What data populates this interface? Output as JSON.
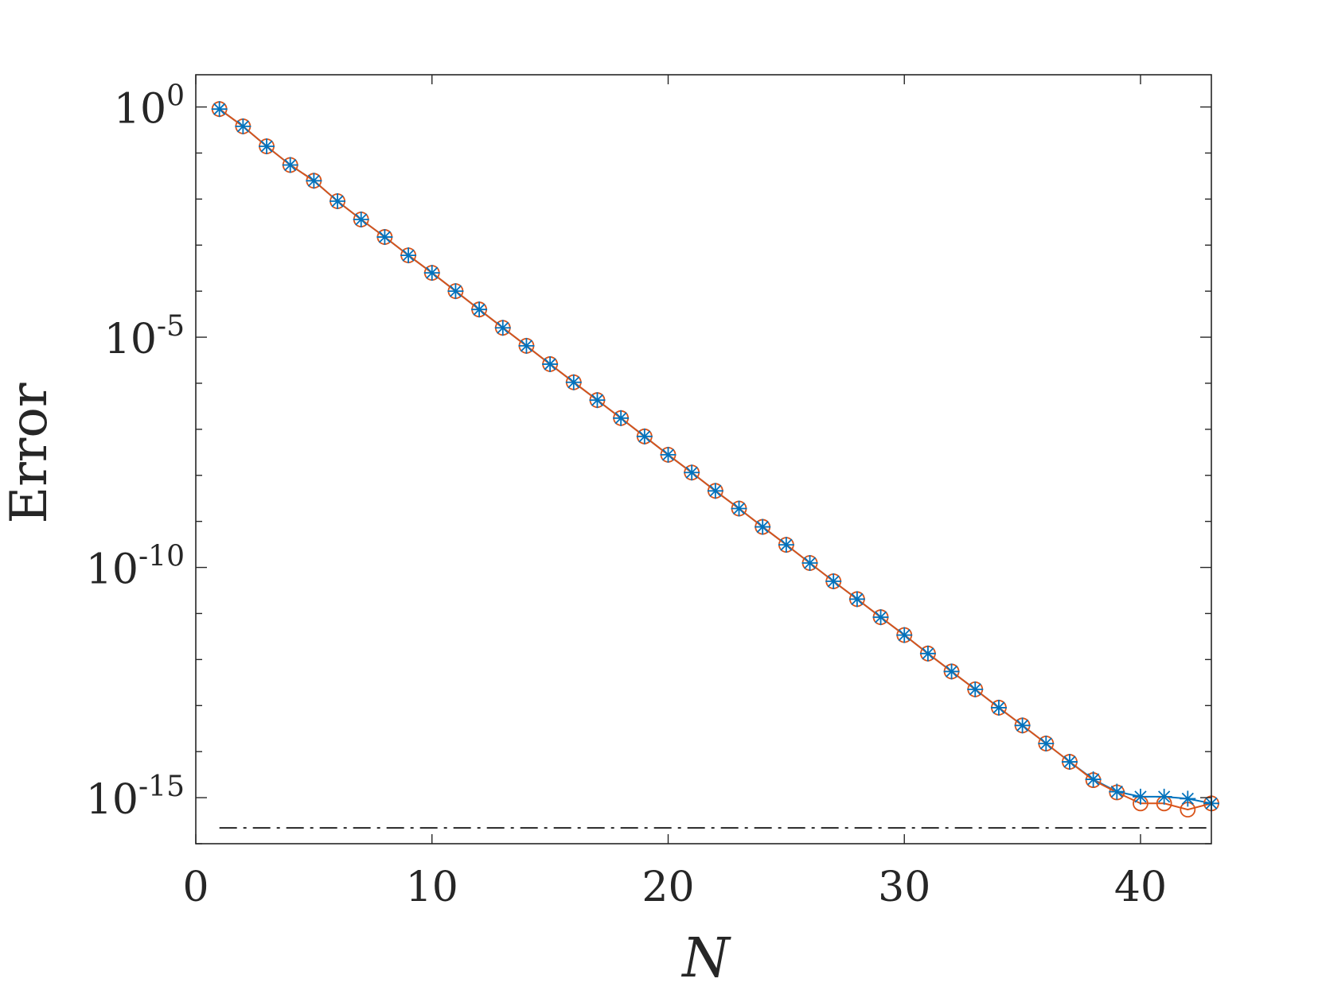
{
  "chart_data": {
    "type": "line",
    "title": "",
    "xlabel": "N",
    "ylabel": "Error",
    "xlim": [
      0,
      43
    ],
    "ylim_log10": [
      -16,
      0.7
    ],
    "yscale": "log",
    "grid": false,
    "legend": "none",
    "x_ticks": [
      {
        "value": 0,
        "label": "0"
      },
      {
        "value": 10,
        "label": "10"
      },
      {
        "value": 20,
        "label": "20"
      },
      {
        "value": 30,
        "label": "30"
      },
      {
        "value": 40,
        "label": "40"
      }
    ],
    "y_ticks": [
      {
        "exp": 0,
        "base": "10",
        "sup": "0"
      },
      {
        "exp": -5,
        "base": "10",
        "sup": "-5"
      },
      {
        "exp": -10,
        "base": "10",
        "sup": "-10"
      },
      {
        "exp": -15,
        "base": "10",
        "sup": "-15"
      }
    ],
    "series": [
      {
        "marker": "star",
        "color": "#0072BD",
        "x": [
          1,
          2,
          3,
          4,
          5,
          6,
          7,
          8,
          9,
          10,
          11,
          12,
          13,
          14,
          15,
          16,
          17,
          18,
          19,
          20,
          21,
          22,
          23,
          24,
          25,
          26,
          27,
          28,
          29,
          30,
          31,
          32,
          33,
          34,
          35,
          36,
          37,
          38,
          39,
          40,
          41,
          42,
          43
        ],
        "y": [
          0.9,
          0.38,
          0.14,
          0.055,
          0.025,
          0.009,
          0.0036,
          0.0015,
          0.0006,
          0.00025,
          0.0001,
          4e-05,
          1.6e-05,
          6.5e-06,
          2.6e-06,
          1.05e-06,
          4.3e-07,
          1.75e-07,
          7e-08,
          2.8e-08,
          1.15e-08,
          4.6e-09,
          1.9e-09,
          7.6e-10,
          3.1e-10,
          1.25e-10,
          5e-11,
          2.05e-11,
          8.3e-12,
          3.4e-12,
          1.35e-12,
          5.5e-13,
          2.25e-13,
          9e-14,
          3.7e-14,
          1.5e-14,
          6e-15,
          2.5e-15,
          1.35e-15,
          1.05e-15,
          1.05e-15,
          9.5e-16,
          7.5e-16
        ]
      },
      {
        "marker": "circle",
        "color": "#D95319",
        "x": [
          1,
          2,
          3,
          4,
          5,
          6,
          7,
          8,
          9,
          10,
          11,
          12,
          13,
          14,
          15,
          16,
          17,
          18,
          19,
          20,
          21,
          22,
          23,
          24,
          25,
          26,
          27,
          28,
          29,
          30,
          31,
          32,
          33,
          34,
          35,
          36,
          37,
          38,
          39,
          40,
          41,
          42,
          43
        ],
        "y": [
          0.9,
          0.38,
          0.14,
          0.055,
          0.025,
          0.009,
          0.0036,
          0.0015,
          0.0006,
          0.00025,
          0.0001,
          4e-05,
          1.6e-05,
          6.5e-06,
          2.6e-06,
          1.05e-06,
          4.3e-07,
          1.75e-07,
          7e-08,
          2.8e-08,
          1.15e-08,
          4.6e-09,
          1.9e-09,
          7.6e-10,
          3.1e-10,
          1.25e-10,
          5e-11,
          2.05e-11,
          8.3e-12,
          3.4e-12,
          1.35e-12,
          5.5e-13,
          2.25e-13,
          9e-14,
          3.7e-14,
          1.5e-14,
          6e-15,
          2.4e-15,
          1.3e-15,
          7.5e-16,
          7.5e-16,
          5.5e-16,
          7.5e-16
        ]
      }
    ],
    "reference_line": {
      "style": "dash-dot",
      "color": "#262626",
      "y": 2.2e-16,
      "x_range": [
        1,
        43
      ]
    }
  }
}
